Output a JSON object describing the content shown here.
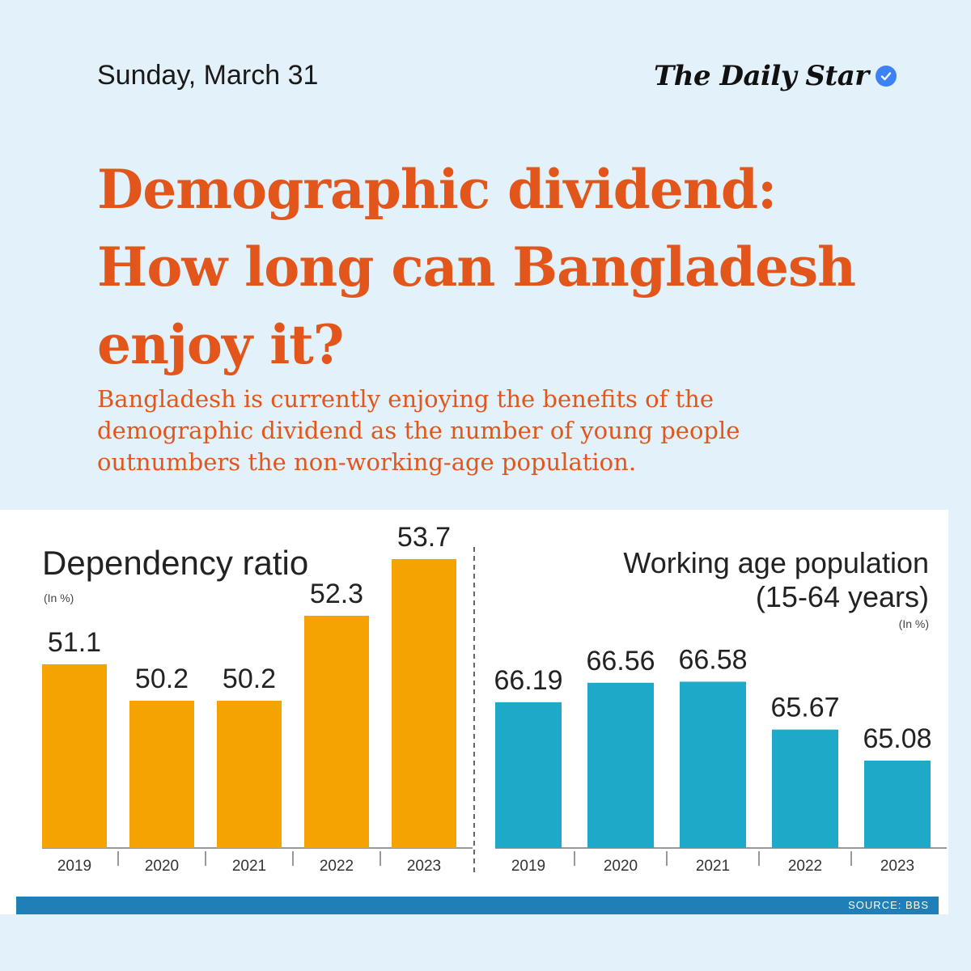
{
  "header": {
    "date": "Sunday, March 31",
    "brand": "The Daily Star"
  },
  "article": {
    "headline": "Demographic dividend: How long can Bangladesh enjoy it?",
    "subhead": "Bangladesh is currently enjoying the benefits of the demographic dividend as the number of young people outnumbers the non-working-age population."
  },
  "source": "SOURCE: BBS",
  "colors": {
    "orange_bar": "#f4a300",
    "blue_bar": "#1fa9c9",
    "headline": "#e2561b",
    "background": "#e3f1fb"
  },
  "chart_data": [
    {
      "type": "bar",
      "title": "Dependency ratio",
      "unit_note": "(In %)",
      "categories": [
        "2019",
        "2020",
        "2021",
        "2022",
        "2023"
      ],
      "values": [
        51.1,
        50.2,
        50.2,
        52.3,
        53.7
      ],
      "value_labels": [
        "51.1",
        "50.2",
        "50.2",
        "52.3",
        "53.7"
      ],
      "color": "#f4a300"
    },
    {
      "type": "bar",
      "title_line1": "Working age population",
      "title_line2": "(15-64 years)",
      "unit_note": "(In %)",
      "categories": [
        "2019",
        "2020",
        "2021",
        "2022",
        "2023"
      ],
      "values": [
        66.19,
        66.56,
        66.58,
        65.67,
        65.08
      ],
      "value_labels": [
        "66.19",
        "66.56",
        "66.58",
        "65.67",
        "65.08"
      ],
      "color": "#1fa9c9"
    }
  ]
}
